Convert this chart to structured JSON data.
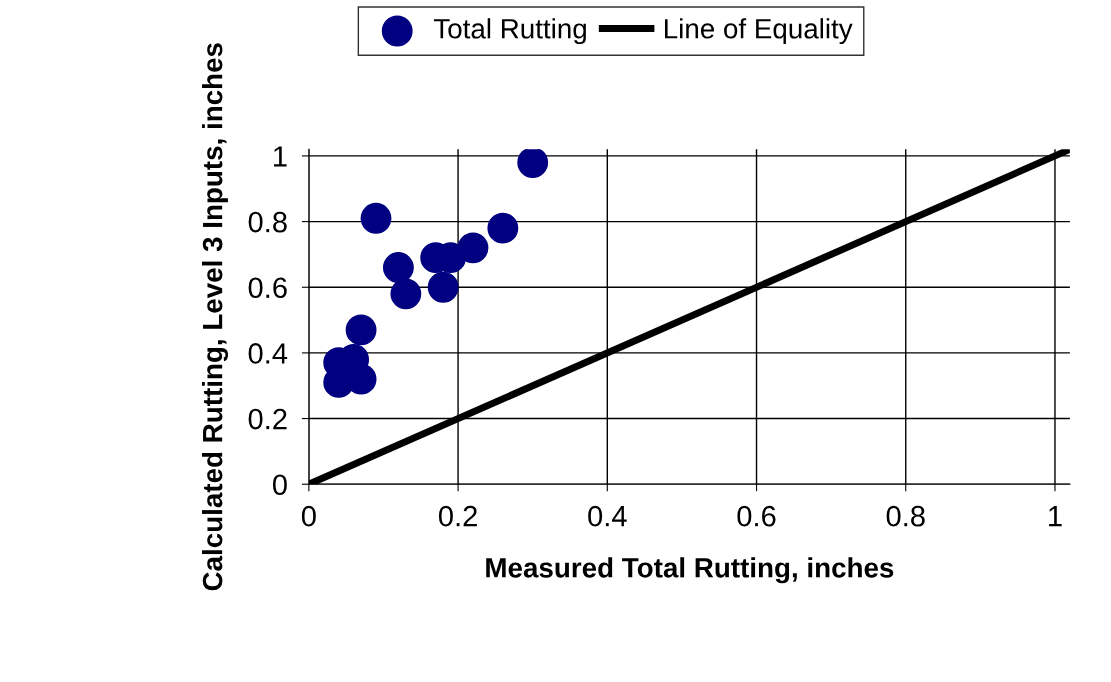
{
  "chart_data": {
    "type": "scatter",
    "xlabel": "Measured Total Rutting, inches",
    "ylabel": "Calculated Rutting, Level 3 Inputs, inches",
    "xlim": [
      0,
      1.02
    ],
    "ylim": [
      0,
      1.02
    ],
    "xticks": [
      0,
      0.2,
      0.4,
      0.6,
      0.8,
      1
    ],
    "yticks": [
      0,
      0.2,
      0.4,
      0.6,
      0.8,
      1
    ],
    "grid": true,
    "legend": "top",
    "marker": "circle",
    "series": [
      {
        "name": "Total Rutting",
        "color": "#000080",
        "x": [
          0.04,
          0.04,
          0.06,
          0.07,
          0.07,
          0.09,
          0.12,
          0.13,
          0.17,
          0.18,
          0.19,
          0.22,
          0.26,
          0.3
        ],
        "values": [
          0.31,
          0.37,
          0.38,
          0.32,
          0.47,
          0.81,
          0.66,
          0.58,
          0.69,
          0.6,
          0.69,
          0.72,
          0.78,
          0.98
        ]
      },
      {
        "name": "Line of Equality",
        "type": "line",
        "color": "#000000",
        "marker": "none",
        "x": [
          0,
          1.02
        ],
        "values": [
          0,
          1.02
        ]
      }
    ]
  }
}
